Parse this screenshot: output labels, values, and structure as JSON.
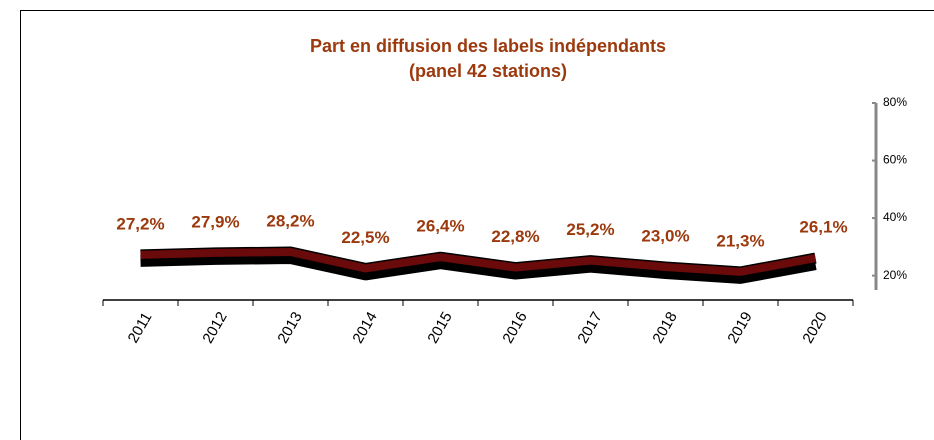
{
  "chart_data": {
    "type": "line",
    "title": "Part en diffusion des labels indépendants",
    "subtitle": "(panel 42 stations)",
    "categories": [
      "2011",
      "2012",
      "2013",
      "2014",
      "2015",
      "2016",
      "2017",
      "2018",
      "2019",
      "2020"
    ],
    "values": [
      27.2,
      27.9,
      28.2,
      22.5,
      26.4,
      22.8,
      25.2,
      23.0,
      21.3,
      26.1
    ],
    "value_labels": [
      "27,2%",
      "27,9%",
      "28,2%",
      "22,5%",
      "26,4%",
      "22,8%",
      "25,2%",
      "23,0%",
      "21,3%",
      "26,1%"
    ],
    "color": "#6b0a0a",
    "ylim": [
      15,
      80
    ],
    "yticks": [
      {
        "value": 20,
        "label": "20%"
      },
      {
        "value": 40,
        "label": "40%"
      },
      {
        "value": 60,
        "label": "60%"
      },
      {
        "value": 80,
        "label": "80%"
      }
    ],
    "y_axis_side": "right",
    "grid": false
  }
}
